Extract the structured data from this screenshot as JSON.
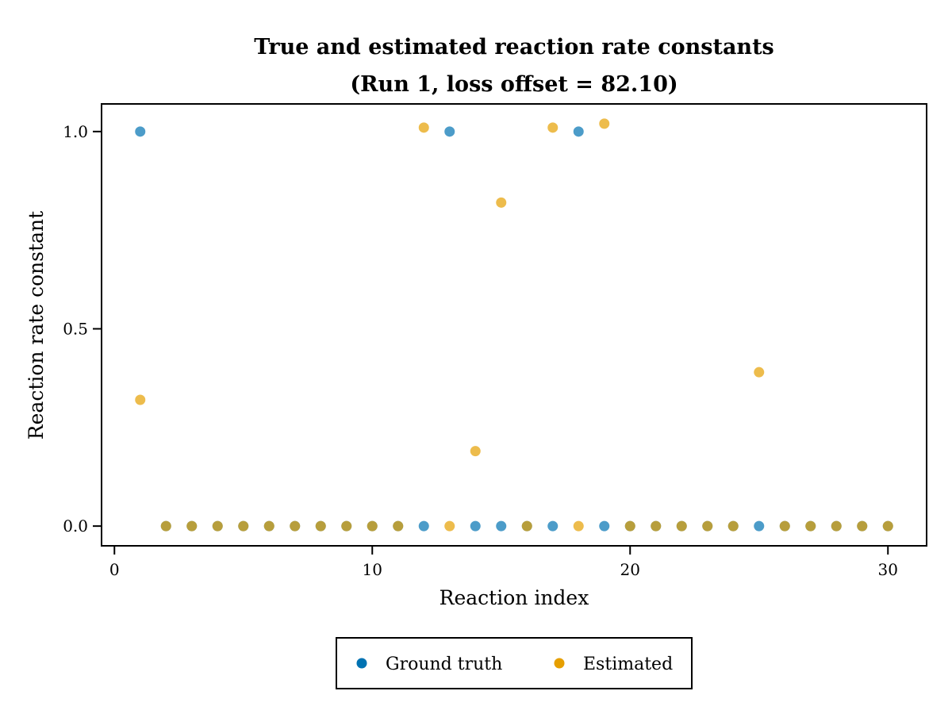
{
  "chart_data": {
    "type": "scatter",
    "title": "True and estimated reaction rate constants",
    "subtitle": "(Run 1, loss offset = 82.10)",
    "xlabel": "Reaction index",
    "ylabel": "Reaction rate constant",
    "xlim": [
      -0.5,
      31.5
    ],
    "ylim": [
      -0.05,
      1.07
    ],
    "x_ticks": [
      0,
      10,
      20,
      30
    ],
    "x_tick_labels": [
      "0",
      "10",
      "20",
      "30"
    ],
    "y_ticks": [
      0.0,
      0.5,
      1.0
    ],
    "y_tick_labels": [
      "0.0",
      "0.5",
      "1.0"
    ],
    "grid": false,
    "legend_position": "bottom-center",
    "series": [
      {
        "name": "Ground truth",
        "color": "#0072B2",
        "x": [
          1,
          2,
          3,
          4,
          5,
          6,
          7,
          8,
          9,
          10,
          11,
          12,
          13,
          14,
          15,
          16,
          17,
          18,
          19,
          20,
          21,
          22,
          23,
          24,
          25,
          26,
          27,
          28,
          29,
          30
        ],
        "y": [
          1.0,
          0,
          0,
          0,
          0,
          0,
          0,
          0,
          0,
          0,
          0,
          0,
          1.0,
          0,
          0,
          0,
          0,
          1.0,
          0,
          0,
          0,
          0,
          0,
          0,
          0,
          0,
          0,
          0,
          0,
          0
        ]
      },
      {
        "name": "Estimated",
        "color": "#E69F00",
        "x": [
          1,
          2,
          3,
          4,
          5,
          6,
          7,
          8,
          9,
          10,
          11,
          12,
          13,
          14,
          15,
          16,
          17,
          18,
          19,
          20,
          21,
          22,
          23,
          24,
          25,
          26,
          27,
          28,
          29,
          30
        ],
        "y": [
          0.32,
          0,
          0,
          0,
          0,
          0,
          0,
          0,
          0,
          0,
          0,
          1.01,
          0,
          0.19,
          0.82,
          0,
          1.01,
          0,
          1.02,
          0,
          0,
          0,
          0,
          0,
          0.39,
          0,
          0,
          0,
          0,
          0
        ]
      }
    ]
  }
}
